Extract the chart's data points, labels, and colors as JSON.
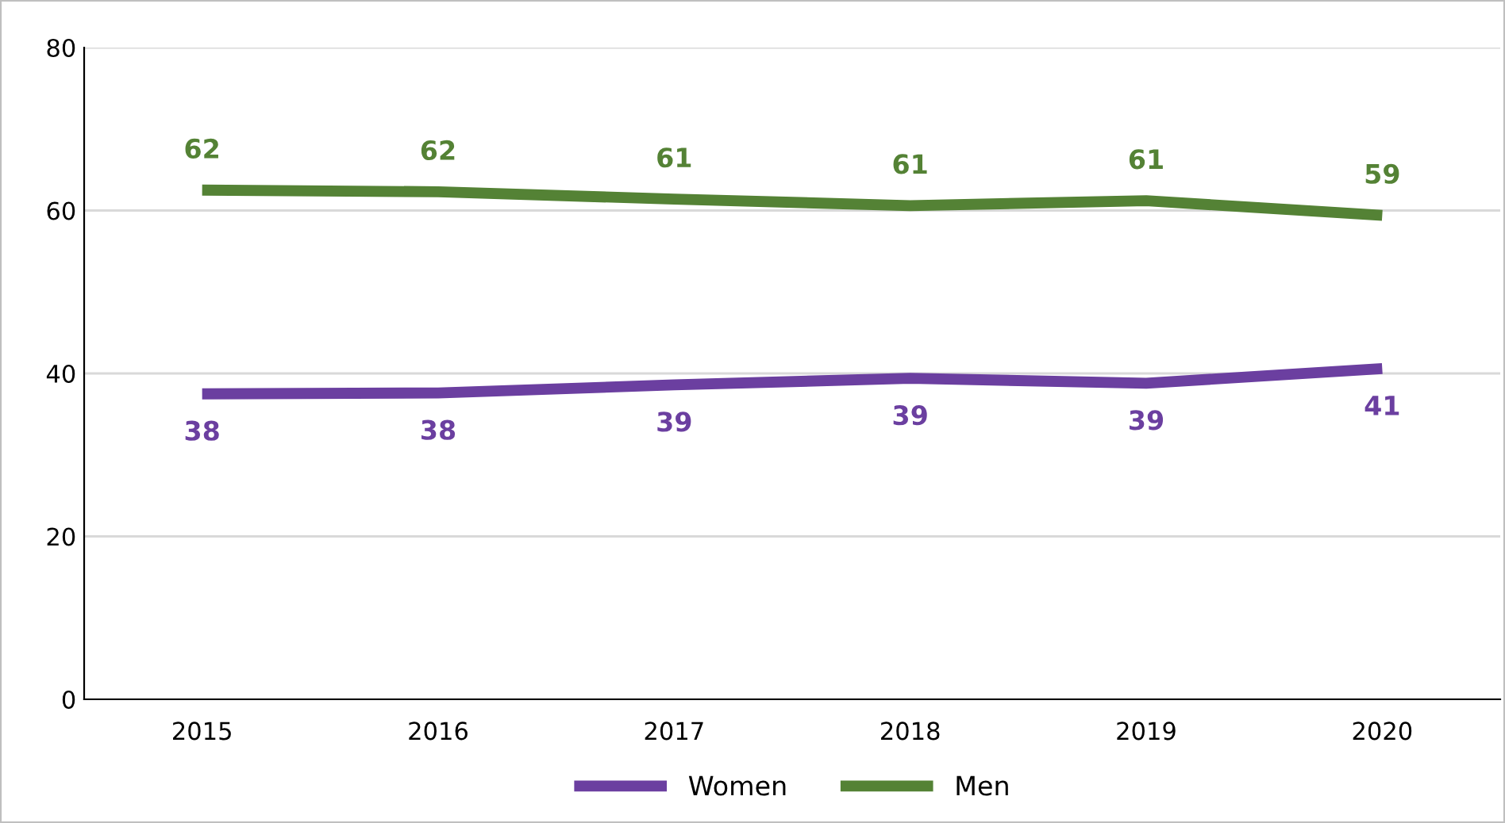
{
  "chart_data": {
    "type": "line",
    "categories": [
      "2015",
      "2016",
      "2017",
      "2018",
      "2019",
      "2020"
    ],
    "series": [
      {
        "name": "Women",
        "color": "#6b3fa0",
        "values": [
          37.5,
          37.6,
          38.6,
          39.4,
          38.8,
          40.6
        ],
        "value_labels": [
          "38",
          "38",
          "39",
          "39",
          "39",
          "41"
        ]
      },
      {
        "name": "Men",
        "color": "#548235",
        "values": [
          62.5,
          62.3,
          61.4,
          60.6,
          61.2,
          59.4
        ],
        "value_labels": [
          "62",
          "62",
          "61",
          "61",
          "61",
          "59"
        ]
      }
    ],
    "ylim": [
      0,
      80
    ],
    "yticks": [
      0,
      20,
      40,
      60,
      80
    ],
    "grid": "y",
    "legend": "bottom",
    "marker": "none",
    "line_style": "solid"
  }
}
